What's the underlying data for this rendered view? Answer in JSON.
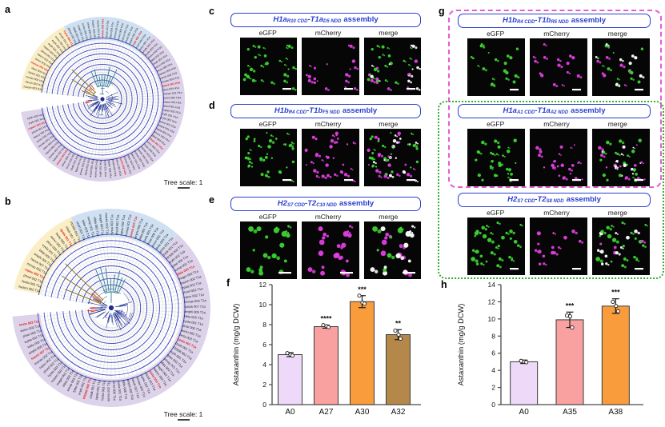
{
  "colors": {
    "title_blue": "#2a3fd0",
    "egfp_green": "#3cd431",
    "mcherry_magenta": "#e23ee2",
    "merge_white": "#ffffff",
    "image_bg": "#060606",
    "tree_sector_yellow": "#faeec6",
    "tree_sector_blue": "#cfe0f2",
    "tree_sector_lavender": "#dcd3ea",
    "tree_ring_blue": "#3a43c4",
    "tree_grid_gray": "#c9c9c9",
    "tree_branch_navy": "#1c2d8f",
    "tree_branch_teal": "#2e7f96",
    "tree_branch_olive": "#8a7a20",
    "tree_label_black": "#222222",
    "tree_label_red": "#e02424",
    "dashed_pink_box": "#e25fd2",
    "dotted_green_box": "#2faf2f",
    "axis_gray": "#4a4a4a"
  },
  "letters": {
    "a": "a",
    "b": "b",
    "c": "c",
    "d": "d",
    "e": "e",
    "f": "f",
    "g": "g",
    "h": "h"
  },
  "trees": [
    {
      "panel": "a",
      "scale_label": "Tree scale: 1",
      "leaf_suffix": "H1a",
      "leaf_stems": [
        "mazen 003",
        "hansh 002",
        "monas 002",
        "hanck 001",
        "ribes 004",
        "monan 001",
        "aureo 002",
        "bacco 002",
        "phosf 001",
        "rupam 002",
        "eryth 001",
        "eryth 002",
        "aureo 001",
        "amphi 001",
        "hyela 003",
        "phrew 002",
        "fabdi 003",
        "chaik 001",
        "eurco 002",
        "pinav 006"
      ],
      "red_indices": [
        5,
        14,
        22,
        30,
        43,
        57,
        66,
        80,
        89
      ]
    },
    {
      "panel": "b",
      "scale_label": "Tree scale: 1",
      "leaf_suffix": "T1a",
      "leaf_stems": [
        "mazen 002",
        "hysta 003",
        "phosf 002",
        "rupsu 002",
        "monas 002",
        "hanck 007",
        "amphi 005",
        "lobla 005",
        "eyela 001",
        "pinar 006",
        "aureo 002",
        "berta 003",
        "spela 001",
        "chaik 001",
        "FR308 002",
        "eryth 001",
        "tylae 003",
        "sonsp 001",
        "elbla 003",
        "magel 002"
      ],
      "red_indices": [
        3,
        12,
        25,
        38,
        52,
        61,
        74,
        85,
        91
      ]
    }
  ],
  "micro_panels": [
    {
      "id": "c",
      "title": {
        "h": "H1a",
        "hsub": "R10 CDD",
        "t": "-T1a",
        "tsub": "D5 NDD",
        "tail": "assembly"
      },
      "columns": [
        "eGFP",
        "mCherry",
        "merge"
      ],
      "dot_count": 40,
      "dot_size": 1.9
    },
    {
      "id": "d",
      "title": {
        "h": "H1b",
        "hsub": "R4 CDD",
        "t": "-T1b",
        "tsub": "F5 NDD",
        "tail": "assembly"
      },
      "columns": [
        "eGFP",
        "mCherry",
        "merge"
      ],
      "dot_count": 58,
      "dot_size": 1.9
    },
    {
      "id": "e",
      "title": {
        "h": "H2",
        "hsub": "S7 CDD",
        "t": "-T2",
        "tsub": "C10 NDD",
        "tail": "assembly"
      },
      "columns": [
        "eGFP",
        "mCherry",
        "merge"
      ],
      "dot_count": 26,
      "dot_size": 3.0
    },
    {
      "id": "g1",
      "title": {
        "h": "H1b",
        "hsub": "R4 CDD",
        "t": "-T1b",
        "tsub": "R5 NDD",
        "tail": "assembly"
      },
      "columns": [
        "eGFP",
        "mCherry",
        "merge"
      ],
      "dot_count": 28,
      "dot_size": 1.9
    },
    {
      "id": "g2",
      "title": {
        "h": "H1a",
        "hsub": "A1 CDD",
        "t": "-T1a",
        "tsub": "A2 NDD",
        "tail": "assembly"
      },
      "columns": [
        "eGFP",
        "mCherry",
        "merge"
      ],
      "dot_count": 42,
      "dot_size": 1.9
    },
    {
      "id": "g3",
      "title": {
        "h": "H2",
        "hsub": "S7 CDD",
        "t": "-T2",
        "tsub": "S8 NDD",
        "tail": "assembly"
      },
      "columns": [
        "eGFP",
        "mCherry",
        "merge"
      ],
      "dot_count": 34,
      "dot_size": 2.4
    }
  ],
  "chart_data": [
    {
      "type": "bar",
      "panel": "f",
      "ylabel": "Astaxanthin (mg/g DCW)",
      "categories": [
        "A0",
        "A27",
        "A30",
        "A32"
      ],
      "values": [
        5.0,
        7.8,
        10.3,
        7.0
      ],
      "errors": [
        0.2,
        0.15,
        0.6,
        0.5
      ],
      "points": [
        [
          5.15,
          5.0,
          4.9
        ],
        [
          7.95,
          7.85,
          7.75
        ],
        [
          10.9,
          10.2,
          10.1
        ],
        [
          7.4,
          7.0,
          6.6
        ]
      ],
      "significance": [
        "",
        "****",
        "***",
        "**"
      ],
      "bar_colors": [
        "#eed9f9",
        "#f9a0a0",
        "#f99c3c",
        "#b4884a"
      ],
      "ylim": [
        0,
        12
      ],
      "ytick_step": 2,
      "grid": false,
      "legend": "none"
    },
    {
      "type": "bar",
      "panel": "h",
      "ylabel": "Astaxanthin (mg/g DCW)",
      "categories": [
        "A0",
        "A35",
        "A38"
      ],
      "values": [
        5.0,
        9.9,
        11.5
      ],
      "errors": [
        0.2,
        0.9,
        0.85
      ],
      "points": [
        [
          5.1,
          5.0,
          4.95
        ],
        [
          10.4,
          10.3,
          9.0
        ],
        [
          12.0,
          11.5,
          10.9
        ]
      ],
      "significance": [
        "",
        "***",
        "***"
      ],
      "bar_colors": [
        "#eed9f9",
        "#f9a0a0",
        "#f99c3c"
      ],
      "ylim": [
        0,
        14
      ],
      "ytick_step": 2,
      "grid": false,
      "legend": "none"
    }
  ]
}
